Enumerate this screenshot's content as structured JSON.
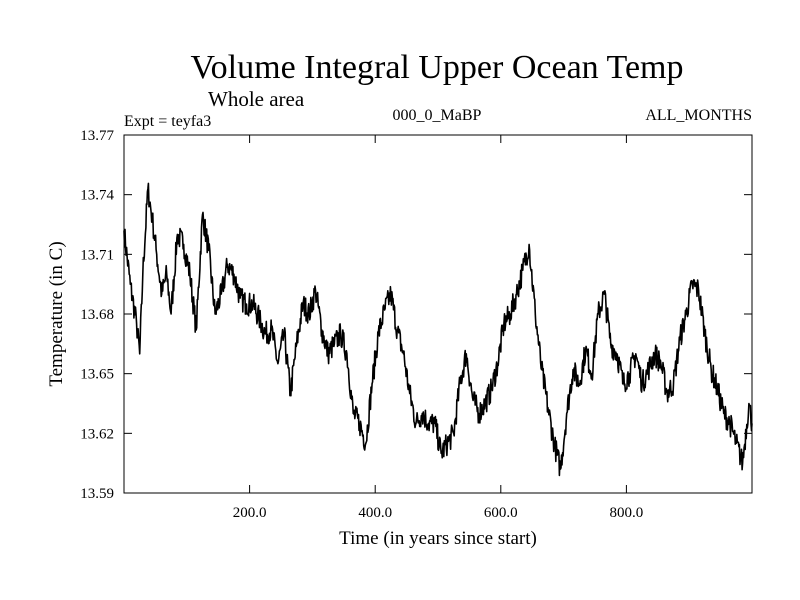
{
  "chart_data": {
    "type": "line",
    "title": "Volume Integral Upper Ocean Temp",
    "subtitle": "Whole area",
    "expt_label": "Expt = teyfa3",
    "run_label": "000_0_MaBP",
    "months_label": "ALL_MONTHS",
    "xlabel": "Time (in years since start)",
    "ylabel": "Temperature (in C)",
    "xlim": [
      0,
      1000
    ],
    "ylim": [
      13.59,
      13.77
    ],
    "xticks": [
      200,
      400,
      600,
      800
    ],
    "xtick_labels": [
      "200.0",
      "400.0",
      "600.0",
      "800.0"
    ],
    "yticks": [
      13.59,
      13.62,
      13.65,
      13.68,
      13.71,
      13.74,
      13.77
    ],
    "ytick_labels": [
      "13.59",
      "13.62",
      "13.65",
      "13.68",
      "13.71",
      "13.74",
      "13.77"
    ],
    "grid": false,
    "series": [
      {
        "name": "temperature",
        "color": "#000000",
        "x": [
          0,
          10,
          20,
          25,
          30,
          38,
          45,
          52,
          60,
          68,
          75,
          85,
          95,
          105,
          115,
          125,
          135,
          145,
          155,
          165,
          175,
          185,
          195,
          205,
          215,
          225,
          235,
          245,
          255,
          265,
          275,
          285,
          295,
          305,
          315,
          325,
          335,
          345,
          355,
          365,
          375,
          385,
          395,
          405,
          415,
          425,
          435,
          445,
          455,
          465,
          475,
          485,
          495,
          505,
          515,
          525,
          535,
          545,
          555,
          565,
          575,
          585,
          595,
          605,
          615,
          625,
          635,
          645,
          655,
          665,
          675,
          685,
          695,
          705,
          715,
          725,
          735,
          745,
          755,
          765,
          775,
          785,
          795,
          805,
          815,
          825,
          835,
          845,
          855,
          865,
          875,
          885,
          895,
          905,
          915,
          925,
          935,
          945,
          955,
          965,
          975,
          985,
          995,
          1000
        ],
        "y": [
          13.722,
          13.695,
          13.675,
          13.66,
          13.7,
          13.743,
          13.728,
          13.71,
          13.69,
          13.7,
          13.68,
          13.72,
          13.715,
          13.7,
          13.672,
          13.73,
          13.712,
          13.68,
          13.69,
          13.705,
          13.7,
          13.688,
          13.685,
          13.685,
          13.678,
          13.67,
          13.672,
          13.655,
          13.67,
          13.64,
          13.665,
          13.685,
          13.68,
          13.692,
          13.672,
          13.66,
          13.665,
          13.67,
          13.66,
          13.63,
          13.625,
          13.615,
          13.645,
          13.67,
          13.682,
          13.69,
          13.672,
          13.66,
          13.64,
          13.625,
          13.63,
          13.625,
          13.625,
          13.61,
          13.615,
          13.62,
          13.645,
          13.66,
          13.638,
          13.63,
          13.635,
          13.642,
          13.655,
          13.675,
          13.68,
          13.69,
          13.702,
          13.715,
          13.68,
          13.652,
          13.633,
          13.615,
          13.602,
          13.63,
          13.652,
          13.645,
          13.662,
          13.65,
          13.68,
          13.69,
          13.665,
          13.66,
          13.645,
          13.65,
          13.66,
          13.645,
          13.652,
          13.66,
          13.655,
          13.64,
          13.645,
          13.667,
          13.68,
          13.695,
          13.692,
          13.67,
          13.652,
          13.642,
          13.63,
          13.625,
          13.615,
          13.605,
          13.635,
          13.625
        ]
      }
    ]
  }
}
